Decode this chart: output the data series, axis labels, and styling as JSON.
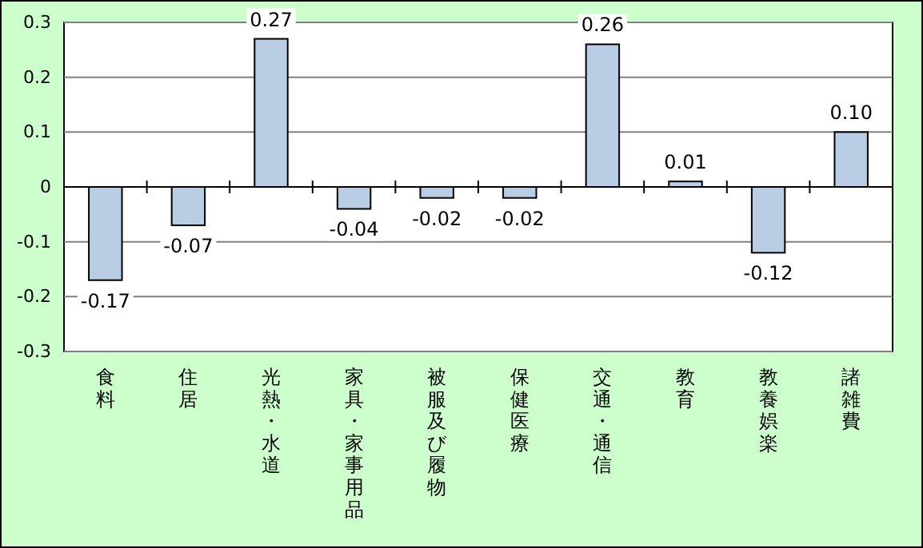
{
  "chart_data": {
    "type": "bar",
    "categories": [
      "食料",
      "住居",
      "光熱・水道",
      "家具・家事用品",
      "被服及び履物",
      "保健医療",
      "交通・通信",
      "教育",
      "教養娯楽",
      "諸雑費"
    ],
    "values": [
      -0.17,
      -0.07,
      0.27,
      -0.04,
      -0.02,
      -0.02,
      0.26,
      0.01,
      -0.12,
      0.1
    ],
    "value_labels": [
      "-0.17",
      "-0.07",
      "0.27",
      "-0.04",
      "-0.02",
      "-0.02",
      "0.26",
      "0.01",
      "-0.12",
      "0.10"
    ],
    "color": "#b9cde5",
    "ylim": [
      -0.3,
      0.3
    ],
    "yticks": [
      {
        "value": -0.3,
        "label": "-0.3"
      },
      {
        "value": -0.2,
        "label": "-0.2"
      },
      {
        "value": -0.1,
        "label": "-0.1"
      },
      0,
      0.1,
      0.2,
      0.3
    ],
    "grid": "y"
  }
}
